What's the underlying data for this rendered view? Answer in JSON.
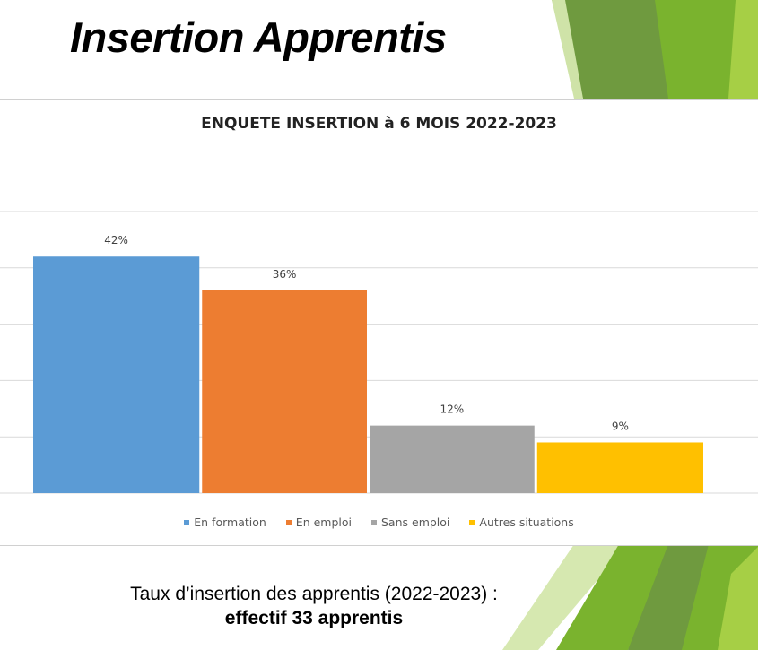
{
  "slide": {
    "title": "Insertion Apprentis",
    "caption_line1": "Taux d’insertion des apprentis (2022-2023) :",
    "caption_line2": "effectif 33 apprentis"
  },
  "theme": {
    "green_dark": "#6f9a3f",
    "green_mid": "#7ab32e",
    "green_light": "#a6cf45",
    "green_pale": "#d6e8b0"
  },
  "chart_data": {
    "type": "bar",
    "title": "ENQUETE INSERTION à 6 MOIS 2022-2023",
    "xlabel": "",
    "ylabel": "",
    "ylim": [
      0,
      0.5
    ],
    "grid": true,
    "legend_position": "bottom",
    "categories": [
      "En formation",
      "En emploi",
      "Sans emploi",
      "Autres situations"
    ],
    "values": [
      0.42,
      0.36,
      0.12,
      0.09
    ],
    "labels": [
      "42%",
      "36%",
      "12%",
      "9%"
    ],
    "colors": [
      "#5b9bd5",
      "#ed7d31",
      "#a5a5a5",
      "#ffc000"
    ]
  }
}
